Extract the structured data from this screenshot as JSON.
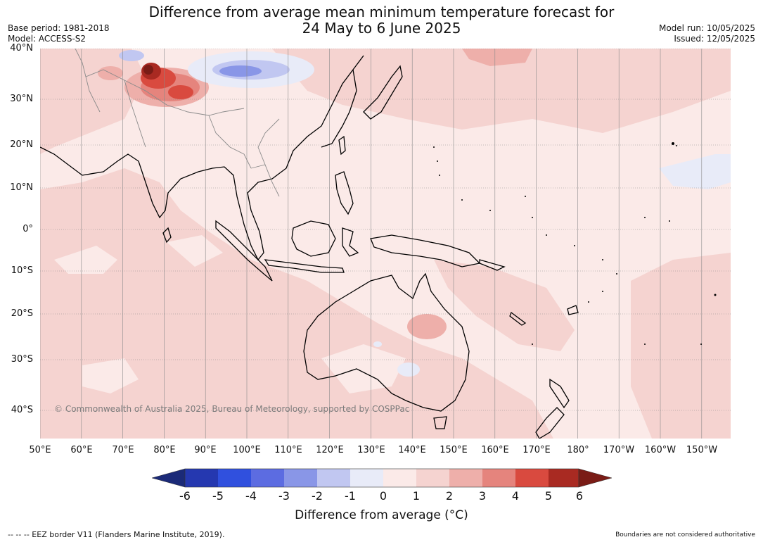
{
  "header": {
    "title_line1": "Difference from average mean minimum temperature forecast for",
    "title_line2": "24 May to 6 June 2025",
    "base_period": "Base period: 1981-2018",
    "model": "Model: ACCESS-S2",
    "model_run": "Model run: 10/05/2025",
    "issued": "Issued: 12/05/2025"
  },
  "map": {
    "latitude_labels": [
      "40°N",
      "30°N",
      "20°N",
      "10°N",
      "0°",
      "10°S",
      "20°S",
      "30°S",
      "40°S"
    ],
    "longitude_labels": [
      "50°E",
      "60°E",
      "70°E",
      "80°E",
      "90°E",
      "100°E",
      "110°E",
      "120°E",
      "130°E",
      "140°E",
      "150°E",
      "160°E",
      "170°E",
      "180°",
      "170°W",
      "160°W",
      "150°W"
    ],
    "copyright": "© Commonwealth of Australia 2025, Bureau of Meteorology, supported by COSPPac",
    "base_color": "#fbeae8",
    "anomaly_colors": {
      "0_to_1": "#fbeae8",
      "1_to_2": "#f5d3d0",
      "2_to_3": "#eeafaa",
      "3_to_4": "#e5847d",
      "4_to_5": "#d94a3f",
      "5_to_6": "#a92a22",
      "above_6": "#7a1c16",
      "-1_to_0": "#e8ebf8",
      "-2_to_-1": "#c1c7f1",
      "-3_to_-2": "#8996e7",
      "-4_to_-3": "#5c6ce1",
      "-5_to_-4": "#3050de",
      "-6_to_-5": "#2538b0",
      "below_-6": "#1b2a78"
    }
  },
  "colorbar": {
    "ticks": [
      "-6",
      "-5",
      "-4",
      "-3",
      "-2",
      "-1",
      "0",
      "1",
      "2",
      "3",
      "4",
      "5",
      "6"
    ],
    "title": "Difference from average (°C)",
    "colors": [
      "#2538b0",
      "#3050de",
      "#5c6ce1",
      "#8996e7",
      "#c1c7f1",
      "#e8ebf8",
      "#fbeae8",
      "#f5d3d0",
      "#eeafaa",
      "#e5847d",
      "#d94a3f",
      "#a92a22"
    ],
    "extend_low_color": "#1b2a78",
    "extend_high_color": "#7a1c16"
  },
  "footer": {
    "eez_note": "--  --  -- EEZ border V11 (Flanders Marine Institute, 2019).",
    "boundary_note": "Boundaries are not considered authoritative"
  }
}
